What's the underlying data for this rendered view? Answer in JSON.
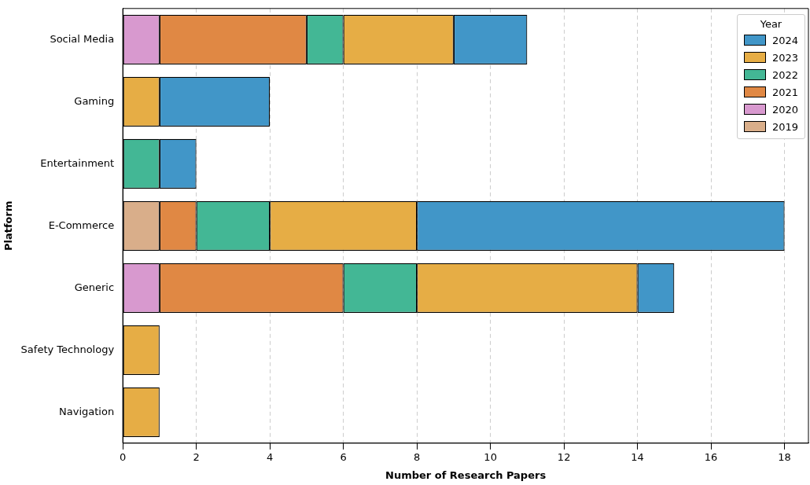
{
  "chart_data": {
    "type": "bar",
    "orientation": "horizontal",
    "stacked": true,
    "xlabel": "Number of Research Papers",
    "ylabel": "Platform",
    "legend_title": "Year",
    "legend": "top right",
    "grid": "x",
    "categories": [
      "Social Media",
      "Gaming",
      "Entertainment",
      "E-Commerce",
      "Generic",
      "Safety Technology",
      "Navigation"
    ],
    "xlim": [
      0,
      18.65
    ],
    "xticks": [
      0,
      2,
      4,
      6,
      8,
      10,
      12,
      14,
      16,
      18
    ],
    "series": [
      {
        "name": "2019",
        "color": "#d9ae8a",
        "values": [
          null,
          null,
          null,
          1,
          null,
          null,
          null
        ]
      },
      {
        "name": "2020",
        "color": "#d899cf",
        "values": [
          1,
          null,
          null,
          null,
          1,
          null,
          null
        ]
      },
      {
        "name": "2021",
        "color": "#e08844",
        "values": [
          4,
          null,
          null,
          1,
          5,
          null,
          null
        ]
      },
      {
        "name": "2022",
        "color": "#43b795",
        "values": [
          1,
          null,
          1,
          2,
          2,
          null,
          null
        ]
      },
      {
        "name": "2023",
        "color": "#e6ad45",
        "values": [
          3,
          1,
          null,
          4,
          6,
          1,
          1
        ]
      },
      {
        "name": "2024",
        "color": "#4196c8",
        "values": [
          2,
          3,
          1,
          10,
          1,
          null,
          null
        ]
      }
    ]
  }
}
